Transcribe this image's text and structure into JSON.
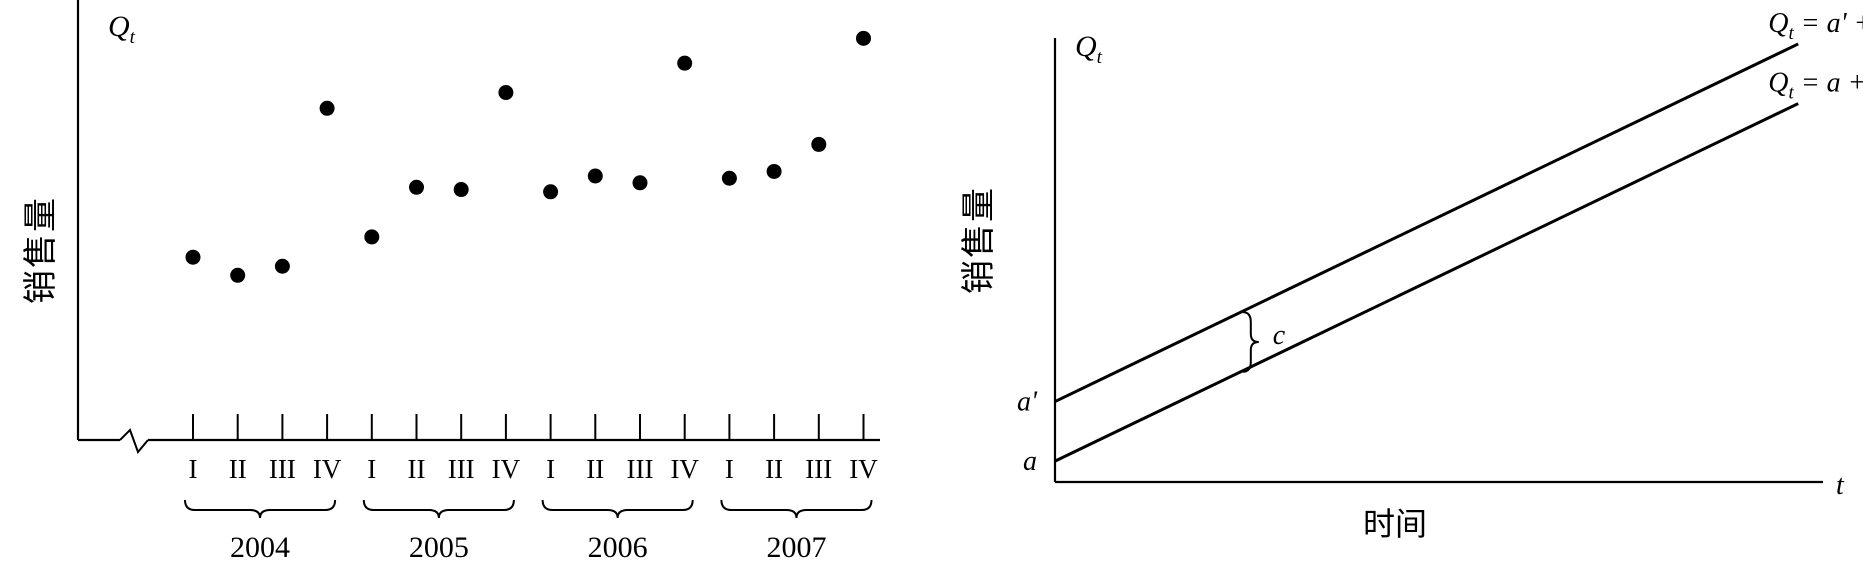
{
  "chart_data": [
    {
      "type": "scatter",
      "ylabel": "销售量",
      "y_symbol": "Q",
      "y_symbol_sub": "t",
      "quarter_labels": [
        "I",
        "II",
        "III",
        "IV"
      ],
      "years": [
        "2004",
        "2005",
        "2006",
        "2007"
      ],
      "values": [
        0.36,
        0.28,
        0.32,
        1.02,
        0.45,
        0.67,
        0.66,
        1.09,
        0.65,
        0.72,
        0.69,
        1.22,
        0.71,
        0.74,
        0.86,
        1.33
      ],
      "ylim": [
        -0.45,
        1.5
      ],
      "axis_break": true
    },
    {
      "type": "line",
      "ylabel": "销售量",
      "xlabel": "时间",
      "y_symbol": "Q",
      "y_symbol_sub": "t",
      "x_symbol": "t",
      "series": [
        {
          "a_label": "a'",
          "eq_prefix": "Q",
          "eq_sub": "t",
          "eq_rhs": "= a' + bt",
          "intercept": 1.0,
          "slope": 1.0
        },
        {
          "a_label": "a",
          "eq_prefix": "Q",
          "eq_sub": "t",
          "eq_rhs": "= a + bt",
          "intercept": 0.0,
          "slope": 1.0
        }
      ],
      "gap_label": "c",
      "xlim": [
        0,
        6.2
      ],
      "ylim": [
        -0.35,
        7.1
      ]
    }
  ]
}
